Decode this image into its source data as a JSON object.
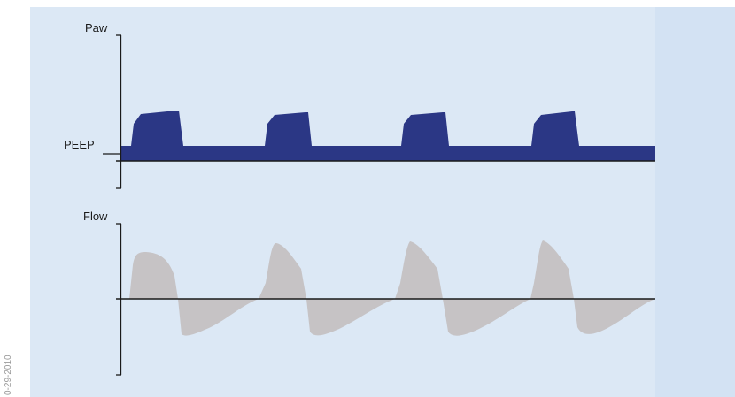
{
  "labels": {
    "paw": "Paw",
    "peep": "PEEP",
    "flow": "Flow",
    "side_code": "0-29-2010"
  },
  "colors": {
    "background_left": "#ffffff",
    "panel_outer": "#d3e2f3",
    "panel_inner": "#dce8f5",
    "paw_waveform": "#2b3785",
    "flow_waveform": "#c6c3c5",
    "axis": "#1a1a1a",
    "label_text": "#1a1a1a",
    "side_code_text": "#9a9a9a"
  },
  "diagram": {
    "paw_breath_count": 4,
    "flow_breath_count": 4
  }
}
